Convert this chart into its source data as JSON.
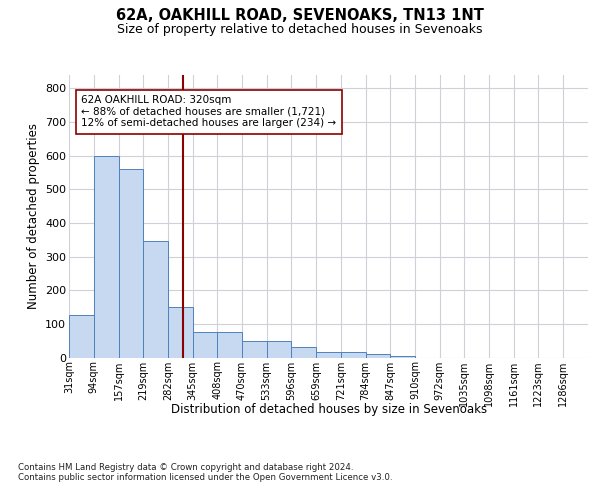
{
  "title1": "62A, OAKHILL ROAD, SEVENOAKS, TN13 1NT",
  "title2": "Size of property relative to detached houses in Sevenoaks",
  "xlabel": "Distribution of detached houses by size in Sevenoaks",
  "ylabel": "Number of detached properties",
  "footnote": "Contains HM Land Registry data © Crown copyright and database right 2024.\nContains public sector information licensed under the Open Government Licence v3.0.",
  "bin_labels": [
    "31sqm",
    "94sqm",
    "157sqm",
    "219sqm",
    "282sqm",
    "345sqm",
    "408sqm",
    "470sqm",
    "533sqm",
    "596sqm",
    "659sqm",
    "721sqm",
    "784sqm",
    "847sqm",
    "910sqm",
    "972sqm",
    "1035sqm",
    "1098sqm",
    "1161sqm",
    "1223sqm",
    "1286sqm"
  ],
  "bin_edges": [
    31,
    94,
    157,
    219,
    282,
    345,
    408,
    470,
    533,
    596,
    659,
    721,
    784,
    847,
    910,
    972,
    1035,
    1098,
    1161,
    1223,
    1286
  ],
  "bar_heights": [
    125,
    600,
    560,
    345,
    150,
    75,
    75,
    50,
    50,
    30,
    15,
    15,
    10,
    5,
    0,
    0,
    0,
    0,
    0,
    0
  ],
  "bar_color": "#c6d9f1",
  "bar_edge_color": "#4f81bd",
  "vline_x": 320,
  "vline_color": "#8b0000",
  "annotation_text": "62A OAKHILL ROAD: 320sqm\n← 88% of detached houses are smaller (1,721)\n12% of semi-detached houses are larger (234) →",
  "annotation_box_color": "white",
  "annotation_box_edge": "#8b0000",
  "ylim": [
    0,
    840
  ],
  "yticks": [
    0,
    100,
    200,
    300,
    400,
    500,
    600,
    700,
    800
  ],
  "grid_color": "#d0d0d8",
  "background_color": "white",
  "fig_bg_color": "white"
}
